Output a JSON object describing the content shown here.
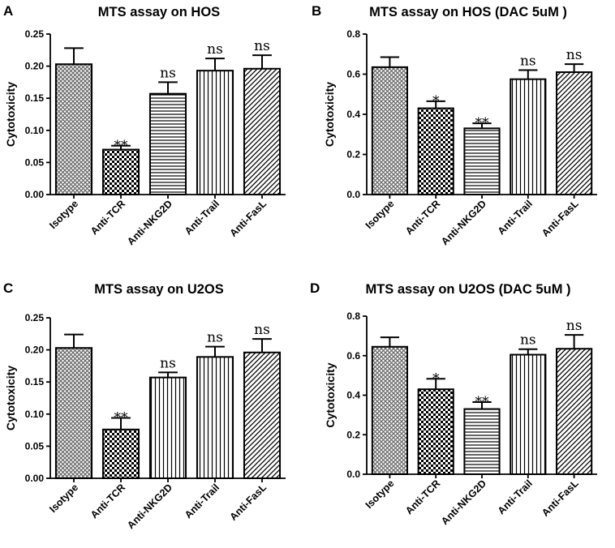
{
  "chart_data": [
    {
      "panel": "A",
      "type": "bar",
      "title": "MTS assay on HOS",
      "ylabel": "Cytotoxicity",
      "xlabel": "",
      "categories": [
        "Isotype",
        "Anti-TCR",
        "Anti-NKG2D",
        "Anti-Trail",
        "Anti-FasL"
      ],
      "values": [
        0.203,
        0.07,
        0.157,
        0.193,
        0.196
      ],
      "errors": [
        0.025,
        0.006,
        0.018,
        0.019,
        0.021
      ],
      "significance": [
        "",
        "**",
        "ns",
        "ns",
        "ns"
      ],
      "ylim": [
        0,
        0.25
      ],
      "yticks": [
        "0.00",
        "0.05",
        "0.10",
        "0.15",
        "0.20",
        "0.25"
      ],
      "patterns": [
        "crosshatch",
        "checker",
        "hlines",
        "vlines",
        "diag"
      ]
    },
    {
      "panel": "B",
      "type": "bar",
      "title": "MTS assay on HOS (DAC 5uM )",
      "ylabel": "Cytotoxicity",
      "xlabel": "",
      "categories": [
        "Isotype",
        "Anti-TCR",
        "Anti-NKG2D",
        "Anti-Trail",
        "Anti-FasL"
      ],
      "values": [
        0.635,
        0.43,
        0.33,
        0.575,
        0.61
      ],
      "errors": [
        0.05,
        0.035,
        0.025,
        0.045,
        0.04
      ],
      "significance": [
        "",
        "*",
        "**",
        "ns",
        "ns"
      ],
      "ylim": [
        0,
        0.8
      ],
      "yticks": [
        "0.0",
        "0.2",
        "0.4",
        "0.6",
        "0.8"
      ],
      "patterns": [
        "crosshatch",
        "checker",
        "hlines",
        "vlines",
        "diag"
      ]
    },
    {
      "panel": "C",
      "type": "bar",
      "title": "MTS assay on U2OS",
      "ylabel": "Cytotoxicity",
      "xlabel": "",
      "categories": [
        "Isotype",
        "Anti-TCR",
        "Anti-NKG2D",
        "Anti-Trail",
        "Anti-FasL"
      ],
      "values": [
        0.203,
        0.076,
        0.157,
        0.189,
        0.196
      ],
      "errors": [
        0.021,
        0.018,
        0.008,
        0.016,
        0.021
      ],
      "significance": [
        "",
        "**",
        "ns",
        "ns",
        "ns"
      ],
      "ylim": [
        0,
        0.25
      ],
      "yticks": [
        "0.00",
        "0.05",
        "0.10",
        "0.15",
        "0.20",
        "0.25"
      ],
      "patterns": [
        "crosshatch",
        "checker",
        "vlines",
        "vlines",
        "diag"
      ]
    },
    {
      "panel": "D",
      "type": "bar",
      "title": "MTS assay on U2OS (DAC 5uM )",
      "ylabel": "Cytotoxicity",
      "xlabel": "",
      "categories": [
        "Isotype",
        "Anti-TCR",
        "Anti-NKG2D",
        "Anti-Trail",
        "Anti-FasL"
      ],
      "values": [
        0.645,
        0.43,
        0.33,
        0.605,
        0.635
      ],
      "errors": [
        0.048,
        0.053,
        0.035,
        0.028,
        0.07
      ],
      "significance": [
        "",
        "*",
        "**",
        "ns",
        "ns"
      ],
      "ylim": [
        0,
        0.8
      ],
      "yticks": [
        "0.0",
        "0.2",
        "0.4",
        "0.6",
        "0.8"
      ],
      "patterns": [
        "crosshatch",
        "checker",
        "hlines",
        "vlines",
        "diag"
      ]
    }
  ]
}
